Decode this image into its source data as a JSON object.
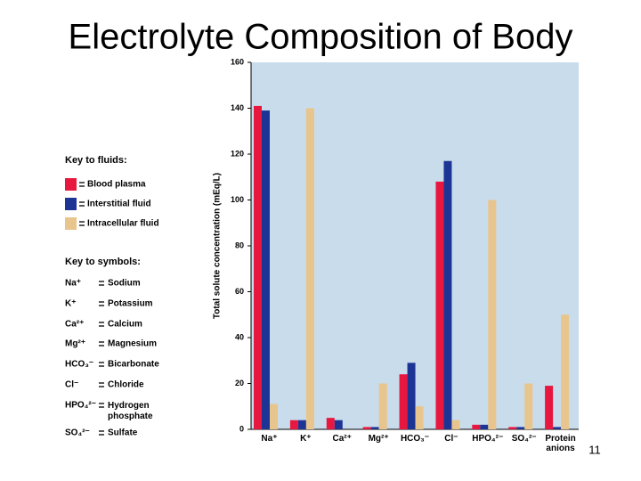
{
  "title": "Electrolyte Composition of Body",
  "page_number": "11",
  "key_to_fluids": {
    "title": "Key to fluids:"
  },
  "key_to_symbols": {
    "title": "Key to symbols:",
    "items": [
      {
        "symbol": "Na⁺",
        "meaning": "Sodium"
      },
      {
        "symbol": "K⁺",
        "meaning": "Potassium"
      },
      {
        "symbol": "Ca²⁺",
        "meaning": "Calcium"
      },
      {
        "symbol": "Mg²⁺",
        "meaning": "Magnesium"
      },
      {
        "symbol": "HCO₃⁻",
        "meaning": "Bicarbonate"
      },
      {
        "symbol": "Cl⁻",
        "meaning": "Chloride"
      },
      {
        "symbol": "HPO₄²⁻",
        "meaning": "Hydrogen phosphate"
      },
      {
        "symbol": "SO₄²⁻",
        "meaning": "Sulfate"
      }
    ]
  },
  "chart_data": {
    "type": "bar",
    "ylabel": "Total solute concentration (mEq/L)",
    "categories": [
      "Na⁺",
      "K⁺",
      "Ca²⁺",
      "Mg²⁺",
      "HCO₃⁻",
      "Cl⁻",
      "HPO₄²⁻",
      "SO₄²⁻",
      "Protein anions"
    ],
    "series": [
      {
        "name": "Blood plasma",
        "color": "#e8173f",
        "values": [
          141,
          4,
          5,
          1,
          24,
          108,
          2,
          1,
          19
        ]
      },
      {
        "name": "Interstitial fluid",
        "color": "#1c3594",
        "values": [
          139,
          4,
          4,
          1,
          29,
          117,
          2,
          1,
          1
        ]
      },
      {
        "name": "Intracellular fluid",
        "color": "#e8c58c",
        "values": [
          11,
          140,
          0,
          20,
          10,
          4,
          100,
          20,
          50
        ]
      }
    ],
    "ylim": [
      0,
      160
    ],
    "yticks": [
      0,
      20,
      40,
      60,
      80,
      100,
      120,
      140,
      160
    ],
    "background": "#c9dcec"
  }
}
